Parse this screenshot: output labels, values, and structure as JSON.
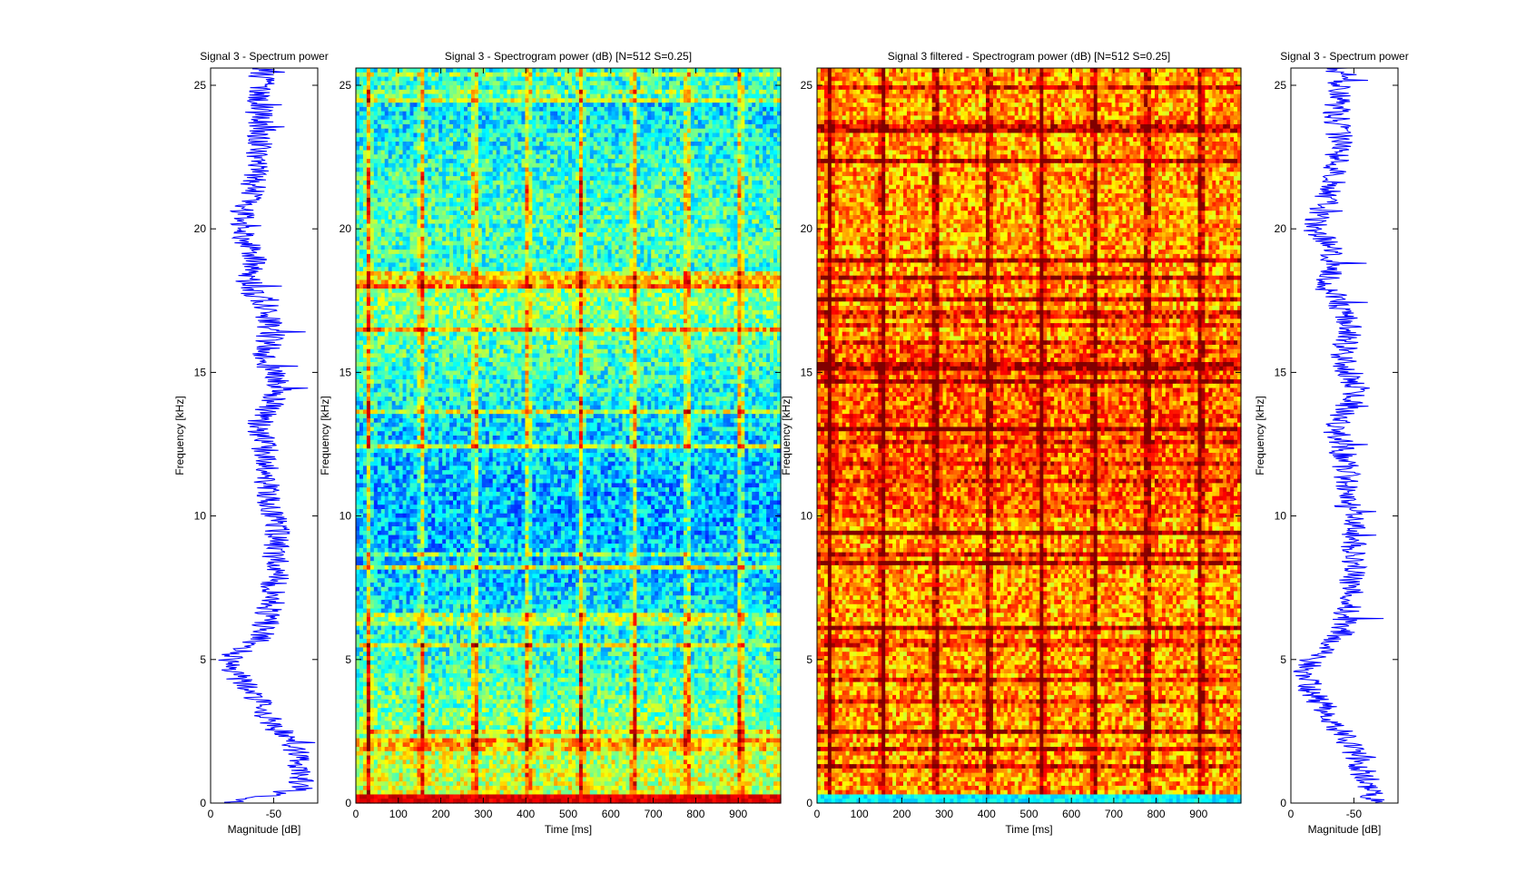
{
  "chart_data": [
    {
      "type": "line",
      "title": "Signal 3 - Spectrum power",
      "xlabel": "Magnitude [dB]",
      "ylabel": "Frequency [kHz]",
      "xticks": [
        "0",
        "-50"
      ],
      "yticks": [
        "0",
        "5",
        "10",
        "15",
        "20",
        "25"
      ],
      "xlim": [
        0,
        -85
      ],
      "ylim": [
        0,
        25.6
      ],
      "line_color": "#0000ff",
      "series": [
        {
          "y": [
            0,
            0.5,
            1,
            1.5,
            2,
            2.5,
            3,
            3.5,
            4,
            4.5,
            5,
            5.5,
            6,
            6.5,
            7,
            7.5,
            8,
            8.5,
            9,
            9.5,
            10,
            10.5,
            11,
            11.5,
            12,
            12.5,
            13,
            13.5,
            14,
            14.5,
            15,
            15.5,
            16,
            16.5,
            17,
            17.5,
            18,
            18.5,
            19,
            19.5,
            20,
            20.5,
            21,
            21.5,
            22,
            22.5,
            23,
            23.5,
            24,
            24.5,
            25,
            25.5
          ],
          "x": [
            -15,
            -70,
            -72,
            -70,
            -66,
            -55,
            -45,
            -38,
            -30,
            -20,
            -12,
            -33,
            -42,
            -45,
            -48,
            -50,
            -52,
            -51,
            -52,
            -53,
            -50,
            -46,
            -45,
            -46,
            -44,
            -42,
            -38,
            -42,
            -50,
            -55,
            -48,
            -42,
            -46,
            -48,
            -45,
            -40,
            -30,
            -32,
            -36,
            -30,
            -22,
            -26,
            -30,
            -34,
            -36,
            -38,
            -40,
            -40,
            -38,
            -40,
            -42,
            -40
          ]
        }
      ]
    },
    {
      "type": "heatmap",
      "title": "Signal 3 - Spectrogram power (dB) [N=512 S=0.25]",
      "xlabel": "Time [ms]",
      "ylabel": "Frequency [kHz]",
      "xticks": [
        "0",
        "100",
        "200",
        "300",
        "400",
        "500",
        "600",
        "700",
        "800",
        "900"
      ],
      "yticks": [
        "0",
        "5",
        "10",
        "15",
        "20",
        "25"
      ],
      "xlim": [
        0,
        1000
      ],
      "ylim": [
        0,
        25.6
      ],
      "colormap": "jet",
      "pulse_times_ms": [
        30,
        155,
        280,
        405,
        530,
        655,
        780,
        905
      ]
    },
    {
      "type": "heatmap",
      "title": "Signal 3 filtered - Spectrogram power (dB) [N=512 S=0.25]",
      "xlabel": "Time [ms]",
      "ylabel": "Frequency [kHz]",
      "xticks": [
        "0",
        "100",
        "200",
        "300",
        "400",
        "500",
        "600",
        "700",
        "800",
        "900"
      ],
      "yticks": [
        "0",
        "5",
        "10",
        "15",
        "20",
        "25"
      ],
      "xlim": [
        0,
        1000
      ],
      "ylim": [
        0,
        25.6
      ],
      "colormap": "jet",
      "pulse_times_ms": [
        30,
        155,
        280,
        405,
        530,
        655,
        780,
        905
      ]
    },
    {
      "type": "line",
      "title": "Signal 3 - Spectrum power",
      "xlabel": "Magnitude [dB]",
      "ylabel": "Frequency [kHz]",
      "xticks": [
        "0",
        "-50"
      ],
      "yticks": [
        "0",
        "5",
        "10",
        "15",
        "20",
        "25"
      ],
      "xlim": [
        0,
        -85
      ],
      "ylim": [
        0,
        25.6
      ],
      "line_color": "#0000ff",
      "series": [
        {
          "y": [
            0,
            0.5,
            1,
            1.5,
            2,
            2.5,
            3,
            3.5,
            4,
            4.5,
            5,
            5.5,
            6,
            6.5,
            7,
            7.5,
            8,
            8.5,
            9,
            9.5,
            10,
            10.5,
            11,
            11.5,
            12,
            12.5,
            13,
            13.5,
            14,
            14.5,
            15,
            15.5,
            16,
            16.5,
            17,
            17.5,
            18,
            18.5,
            19,
            19.5,
            20,
            20.5,
            21,
            21.5,
            22,
            22.5,
            23,
            23.5,
            24,
            24.5,
            25,
            25.5
          ],
          "x": [
            -68,
            -62,
            -58,
            -55,
            -48,
            -40,
            -30,
            -22,
            -15,
            -10,
            -18,
            -32,
            -40,
            -44,
            -46,
            -48,
            -50,
            -49,
            -50,
            -51,
            -48,
            -44,
            -43,
            -44,
            -42,
            -40,
            -36,
            -40,
            -48,
            -52,
            -46,
            -40,
            -44,
            -46,
            -43,
            -38,
            -28,
            -30,
            -34,
            -28,
            -20,
            -24,
            -28,
            -32,
            -34,
            -36,
            -38,
            -38,
            -36,
            -38,
            -40,
            -38
          ]
        }
      ]
    }
  ]
}
